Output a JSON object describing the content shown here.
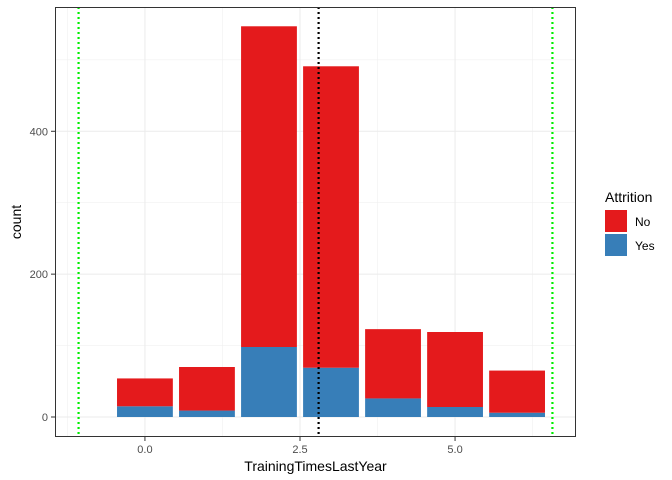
{
  "chart_data": {
    "type": "bar",
    "stacked": true,
    "title": "",
    "xlabel": "TrainingTimesLastYear",
    "ylabel": "count",
    "x": [
      0,
      1,
      2,
      3,
      4,
      5,
      6
    ],
    "xlim": [
      -1.45,
      6.95
    ],
    "ylim": [
      -28,
      574
    ],
    "xticks": [
      0,
      2.5,
      5
    ],
    "xtick_labels": [
      "0.0",
      "2.5",
      "5.0"
    ],
    "yticks": [
      0,
      200,
      400
    ],
    "ytick_labels": [
      "0",
      "200",
      "400"
    ],
    "grid": true,
    "legend": {
      "title": "Attrition",
      "position": "right"
    },
    "series": [
      {
        "name": "No",
        "color": "#E41A1C",
        "values": [
          39,
          61,
          449,
          422,
          97,
          105,
          59
        ]
      },
      {
        "name": "Yes",
        "color": "#377EB8",
        "values": [
          15,
          9,
          98,
          69,
          26,
          14,
          6
        ]
      }
    ],
    "reference_lines": [
      {
        "x": -1.07,
        "color": "#00EE00",
        "style": "dotted"
      },
      {
        "x": 2.8,
        "color": "#000000",
        "style": "dotted"
      },
      {
        "x": 6.57,
        "color": "#00EE00",
        "style": "dotted"
      }
    ]
  }
}
